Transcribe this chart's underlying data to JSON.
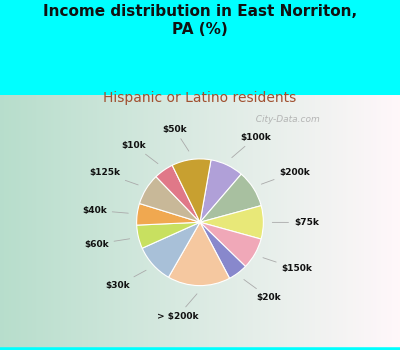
{
  "title": "Income distribution in East Norriton,\nPA (%)",
  "subtitle": "Hispanic or Latino residents",
  "background_color": "#00FFFF",
  "labels": [
    "$100k",
    "$200k",
    "$75k",
    "$150k",
    "$20k",
    "> $200k",
    "$30k",
    "$60k",
    "$40k",
    "$125k",
    "$10k",
    "$50k"
  ],
  "sizes": [
    8.5,
    9.5,
    8.5,
    8.0,
    5.0,
    16.0,
    10.0,
    6.0,
    5.5,
    8.0,
    5.0,
    10.0
  ],
  "colors": [
    "#b0a0d8",
    "#a8c0a0",
    "#e8e878",
    "#f0a8b8",
    "#8888cc",
    "#f5c8a0",
    "#a8c0d8",
    "#c8e060",
    "#f0a850",
    "#c8b898",
    "#e07888",
    "#c8a030"
  ],
  "title_fontsize": 11,
  "subtitle_fontsize": 10,
  "subtitle_color": "#a05030",
  "watermark": "  City-Data.com"
}
